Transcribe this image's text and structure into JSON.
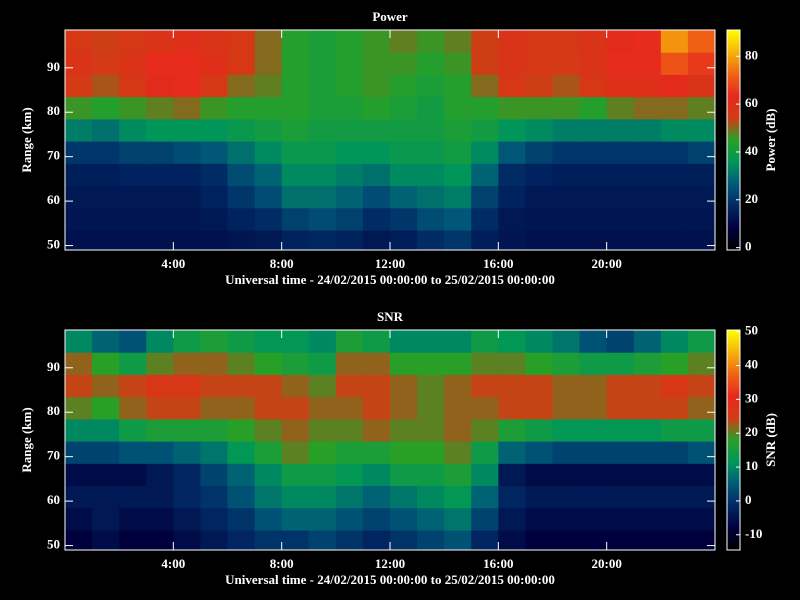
{
  "chart_data": [
    {
      "type": "heatmap",
      "title": "Power",
      "xlabel": "Universal time - 24/02/2015 00:00:00 to 25/02/2015 00:00:00",
      "ylabel": "Range (km)",
      "x": [
        0.5,
        1.5,
        2.5,
        3.5,
        4.5,
        5.5,
        6.5,
        7.5,
        8.5,
        9.5,
        10.5,
        11.5,
        12.5,
        13.5,
        14.5,
        15.5,
        16.5,
        17.5,
        18.5,
        19.5,
        20.5,
        21.5,
        22.5,
        23.5
      ],
      "y": [
        51,
        56,
        61,
        66,
        71,
        76,
        81,
        86,
        91,
        96
      ],
      "z": [
        [
          12,
          12,
          12,
          12,
          12,
          12,
          13,
          14,
          16,
          17,
          16,
          14,
          15,
          18,
          20,
          15,
          13,
          12,
          12,
          12,
          12,
          12,
          12,
          12
        ],
        [
          13,
          13,
          13,
          13,
          13,
          14,
          16,
          18,
          22,
          24,
          22,
          18,
          20,
          24,
          26,
          18,
          14,
          13,
          13,
          13,
          13,
          13,
          13,
          13
        ],
        [
          14,
          14,
          14,
          14,
          14,
          16,
          20,
          24,
          30,
          30,
          28,
          24,
          28,
          30,
          32,
          22,
          16,
          14,
          14,
          14,
          14,
          14,
          14,
          14
        ],
        [
          15,
          15,
          16,
          16,
          16,
          18,
          24,
          28,
          34,
          34,
          32,
          30,
          34,
          34,
          36,
          28,
          18,
          16,
          15,
          15,
          15,
          15,
          15,
          15
        ],
        [
          20,
          20,
          22,
          22,
          24,
          26,
          30,
          34,
          38,
          38,
          36,
          36,
          38,
          38,
          40,
          34,
          26,
          22,
          20,
          20,
          20,
          20,
          20,
          22
        ],
        [
          32,
          30,
          34,
          36,
          36,
          36,
          38,
          40,
          42,
          40,
          40,
          40,
          40,
          40,
          42,
          40,
          36,
          34,
          32,
          32,
          32,
          32,
          34,
          34
        ],
        [
          46,
          44,
          46,
          48,
          50,
          46,
          44,
          44,
          44,
          42,
          42,
          44,
          42,
          40,
          44,
          44,
          46,
          46,
          46,
          44,
          48,
          50,
          50,
          48
        ],
        [
          55,
          52,
          56,
          62,
          64,
          56,
          50,
          48,
          44,
          42,
          44,
          46,
          44,
          42,
          44,
          50,
          56,
          54,
          52,
          56,
          60,
          60,
          62,
          58
        ],
        [
          58,
          55,
          58,
          64,
          64,
          60,
          56,
          50,
          44,
          42,
          44,
          46,
          46,
          44,
          46,
          54,
          58,
          56,
          55,
          58,
          64,
          64,
          70,
          66
        ],
        [
          56,
          54,
          56,
          58,
          60,
          58,
          56,
          50,
          44,
          42,
          44,
          46,
          48,
          46,
          48,
          54,
          58,
          56,
          56,
          58,
          62,
          64,
          78,
          72
        ]
      ],
      "xlim": [
        0,
        24
      ],
      "xticks": [
        {
          "value": 4,
          "label": "4:00"
        },
        {
          "value": 8,
          "label": "8:00"
        },
        {
          "value": 12,
          "label": "12:00"
        },
        {
          "value": 16,
          "label": "16:00"
        },
        {
          "value": 20,
          "label": "20:00"
        }
      ],
      "ylim": [
        49,
        98.5
      ],
      "yticks": [
        50,
        60,
        70,
        80,
        90
      ],
      "colorbar": {
        "label": "Power (dB)",
        "lim": [
          -1,
          91
        ],
        "ticks": [
          0,
          20,
          40,
          60,
          80
        ]
      },
      "colormap": [
        "#000000",
        "#00003c",
        "#002864",
        "#005a78",
        "#00965a",
        "#28a028",
        "#d23c14",
        "#e6281e",
        "#f06414",
        "#f5b40a",
        "#ffff00"
      ]
    },
    {
      "type": "heatmap",
      "title": "SNR",
      "xlabel": "Universal time - 24/02/2015 00:00:00 to 25/02/2015 00:00:00",
      "ylabel": "Range (km)",
      "x": [
        0.5,
        1.5,
        2.5,
        3.5,
        4.5,
        5.5,
        6.5,
        7.5,
        8.5,
        9.5,
        10.5,
        11.5,
        12.5,
        13.5,
        14.5,
        15.5,
        16.5,
        17.5,
        18.5,
        19.5,
        20.5,
        21.5,
        22.5,
        23.5
      ],
      "y": [
        51,
        56,
        61,
        66,
        71,
        76,
        81,
        86,
        91,
        96
      ],
      "z": [
        [
          -8,
          -6,
          -8,
          -8,
          -6,
          -4,
          -2,
          0,
          0,
          2,
          0,
          -2,
          0,
          2,
          4,
          -2,
          -6,
          -8,
          -8,
          -8,
          -8,
          -8,
          -8,
          -8
        ],
        [
          -6,
          -4,
          -6,
          -6,
          -4,
          -2,
          0,
          4,
          6,
          6,
          4,
          2,
          4,
          6,
          8,
          2,
          -4,
          -6,
          -6,
          -6,
          -6,
          -6,
          -6,
          -6
        ],
        [
          -4,
          -4,
          -4,
          -4,
          -2,
          0,
          4,
          8,
          10,
          10,
          8,
          6,
          8,
          10,
          12,
          6,
          -2,
          -4,
          -4,
          -4,
          -4,
          -4,
          -4,
          -4
        ],
        [
          -6,
          -6,
          -6,
          -4,
          -2,
          2,
          6,
          10,
          14,
          14,
          12,
          10,
          14,
          14,
          16,
          10,
          -4,
          -6,
          -6,
          -6,
          -6,
          -6,
          -6,
          -6
        ],
        [
          2,
          2,
          4,
          4,
          6,
          8,
          12,
          16,
          20,
          18,
          16,
          16,
          18,
          18,
          20,
          14,
          6,
          4,
          2,
          2,
          2,
          2,
          2,
          4
        ],
        [
          10,
          10,
          14,
          16,
          16,
          16,
          18,
          20,
          22,
          20,
          20,
          22,
          20,
          20,
          22,
          20,
          16,
          14,
          12,
          12,
          12,
          12,
          14,
          14
        ],
        [
          20,
          18,
          22,
          24,
          24,
          22,
          22,
          24,
          24,
          22,
          22,
          24,
          22,
          20,
          22,
          22,
          24,
          24,
          22,
          22,
          24,
          24,
          24,
          22
        ],
        [
          24,
          22,
          24,
          26,
          26,
          24,
          24,
          24,
          22,
          20,
          24,
          24,
          22,
          20,
          22,
          24,
          24,
          24,
          22,
          22,
          24,
          24,
          26,
          24
        ],
        [
          22,
          18,
          14,
          20,
          22,
          22,
          20,
          18,
          16,
          14,
          22,
          22,
          18,
          18,
          18,
          20,
          20,
          18,
          16,
          14,
          14,
          16,
          18,
          20
        ],
        [
          10,
          6,
          4,
          10,
          14,
          16,
          14,
          12,
          12,
          10,
          16,
          14,
          10,
          10,
          10,
          14,
          12,
          10,
          8,
          4,
          2,
          6,
          10,
          14
        ]
      ],
      "xlim": [
        0,
        24
      ],
      "xticks": [
        {
          "value": 4,
          "label": "4:00"
        },
        {
          "value": 8,
          "label": "8:00"
        },
        {
          "value": 12,
          "label": "12:00"
        },
        {
          "value": 16,
          "label": "16:00"
        },
        {
          "value": 20,
          "label": "20:00"
        }
      ],
      "ylim": [
        49,
        98.5
      ],
      "yticks": [
        50,
        60,
        70,
        80,
        90
      ],
      "colorbar": {
        "label": "SNR (dB)",
        "lim": [
          -14.5,
          50.5
        ],
        "ticks": [
          -10,
          0,
          10,
          20,
          30,
          40,
          50
        ]
      },
      "colormap": [
        "#000000",
        "#00003c",
        "#002864",
        "#005a78",
        "#00965a",
        "#28a028",
        "#d23c14",
        "#e6281e",
        "#f06414",
        "#f5b40a",
        "#ffff00"
      ]
    }
  ]
}
